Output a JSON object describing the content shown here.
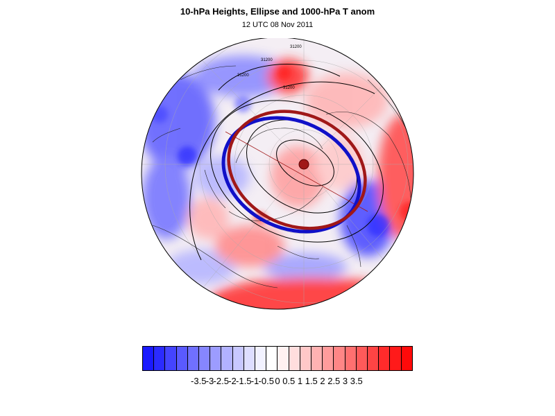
{
  "title": "10-hPa Heights, Ellipse and 1000-hPa T anom",
  "subtitle": "12 UTC 08 Nov 2011",
  "map": {
    "projection": "polar stereographic (North Pole)",
    "height_labels": [
      "31200",
      "31200",
      "31200",
      "31200"
    ],
    "ellipse_colors": {
      "fitted": "#a01818",
      "contour": "#1010c8"
    }
  },
  "colorbar": {
    "labels": [
      "-3.5",
      "-3",
      "-2.5",
      "-2",
      "-1.5",
      "-1",
      "-0.5",
      "0",
      "0.5",
      "1",
      "1.5",
      "2",
      "2.5",
      "3",
      "3.5"
    ],
    "colors": [
      "#1a1aff",
      "#2b2bff",
      "#4444ff",
      "#5a5aff",
      "#7070ff",
      "#8686ff",
      "#9c9cff",
      "#b2b2ff",
      "#c8c8ff",
      "#dedeff",
      "#f2f2ff",
      "#ffffff",
      "#fff2f2",
      "#ffdede",
      "#ffc8c8",
      "#ffb2b2",
      "#ff9c9c",
      "#ff8686",
      "#ff7070",
      "#ff5a5a",
      "#ff4444",
      "#ff2b2b",
      "#ff1a1a",
      "#ff0a0a"
    ]
  }
}
